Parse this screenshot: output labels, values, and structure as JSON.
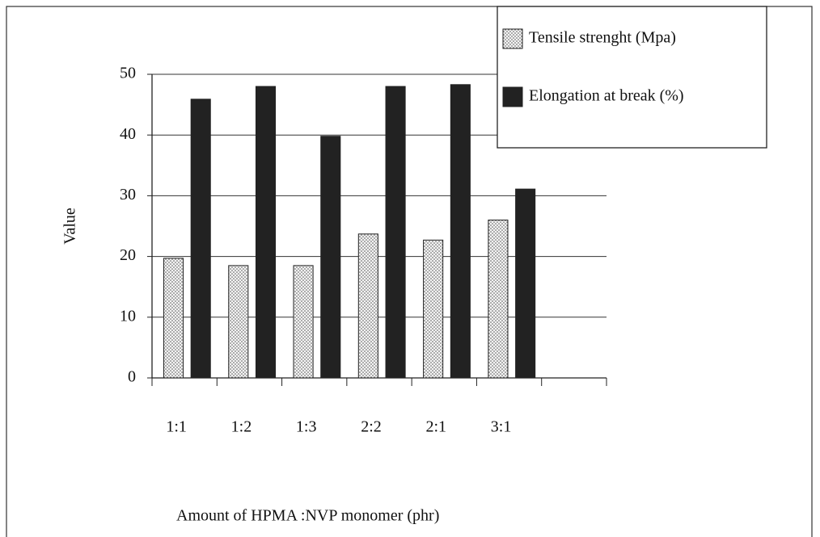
{
  "chart_data": {
    "type": "bar",
    "categories": [
      "1:1",
      "1:2",
      "1:3",
      "2:2",
      "2:1",
      "3:1",
      null
    ],
    "series": [
      {
        "name": "Tensile strenght (Mpa)",
        "color": "#f2f2f2",
        "pattern": "dots",
        "values": [
          19.7,
          18.5,
          18.5,
          23.7,
          22.7,
          26,
          null
        ]
      },
      {
        "name": "Elongation at break (%)",
        "color": "#222222",
        "values": [
          45.9,
          48,
          39.8,
          48,
          48.3,
          31.1,
          null
        ]
      }
    ],
    "ylim": [
      0,
      50
    ],
    "yticks": [
      0,
      10,
      20,
      30,
      40,
      50
    ],
    "grid": true,
    "ylabel": "Value",
    "xlabel": "Amount of HPMA :NVP monomer  (phr)",
    "legend": "upper right"
  }
}
